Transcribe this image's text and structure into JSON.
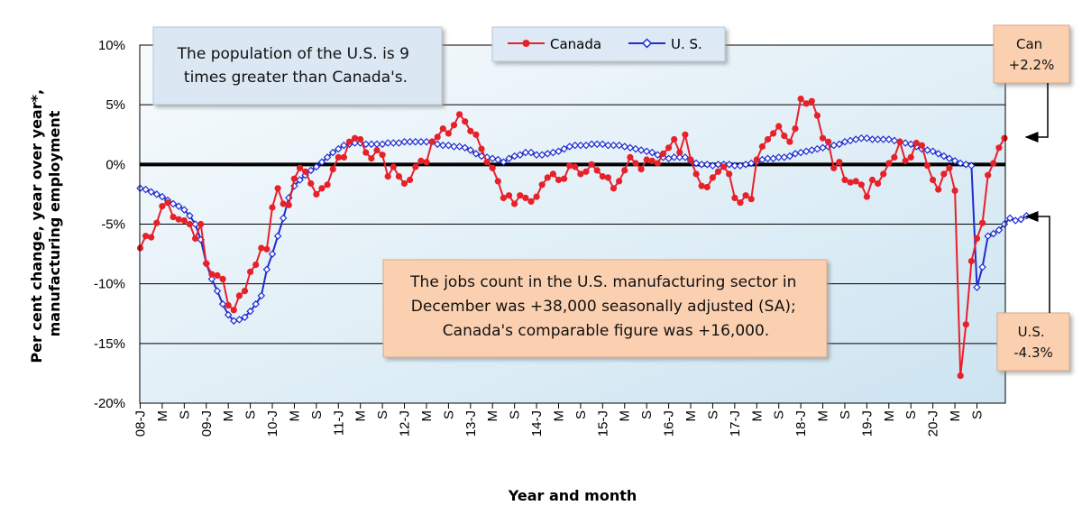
{
  "chart_data": {
    "type": "line",
    "title": "",
    "xlabel": "Year and month",
    "ylabel": "Per cent change, year over year*, manufacturing employment",
    "ylim": [
      -20,
      10
    ],
    "yticks": [
      "10%",
      "5%",
      "0%",
      "-5%",
      "-10%",
      "-15%",
      "-20%"
    ],
    "x_tick_labels": [
      "08-J",
      "M",
      "S",
      "09-J",
      "M",
      "S",
      "10-J",
      "M",
      "S",
      "11-J",
      "M",
      "S",
      "12-J",
      "M",
      "S",
      "13-J",
      "M",
      "S",
      "14-J",
      "M",
      "S",
      "15-J",
      "M",
      "S",
      "16-J",
      "M",
      "S",
      "17-J",
      "M",
      "S",
      "18-J",
      "M",
      "S",
      "19-J",
      "M",
      "S",
      "20-J",
      "M",
      "S"
    ],
    "months_start": "2008-01",
    "months_end": "2020-12",
    "series": [
      {
        "name": "Canada",
        "color": "#e8202a",
        "marker": "filled-circle",
        "values": [
          -7.0,
          -6.0,
          -6.1,
          -4.9,
          -3.5,
          -3.2,
          -4.4,
          -4.6,
          -4.7,
          -5.0,
          -6.2,
          -5.0,
          -8.3,
          -9.2,
          -9.3,
          -9.6,
          -11.8,
          -12.2,
          -11.0,
          -10.6,
          -9.0,
          -8.4,
          -7.0,
          -7.1,
          -3.6,
          -2.0,
          -3.3,
          -3.4,
          -1.2,
          -0.3,
          -0.6,
          -1.6,
          -2.5,
          -2.0,
          -1.7,
          -0.4,
          0.6,
          0.6,
          1.9,
          2.2,
          2.1,
          1.0,
          0.5,
          1.2,
          0.8,
          -1.0,
          -0.2,
          -1.0,
          -1.6,
          -1.3,
          -0.2,
          0.3,
          0.2,
          1.9,
          2.3,
          3.0,
          2.6,
          3.3,
          4.2,
          3.6,
          2.8,
          2.5,
          1.3,
          0.2,
          -0.3,
          -1.4,
          -2.8,
          -2.6,
          -3.3,
          -2.6,
          -2.8,
          -3.1,
          -2.7,
          -1.7,
          -1.1,
          -0.8,
          -1.3,
          -1.2,
          -0.1,
          -0.2,
          -0.8,
          -0.6,
          0.0,
          -0.5,
          -1.0,
          -1.1,
          -2.0,
          -1.4,
          -0.5,
          0.6,
          0.1,
          -0.4,
          0.4,
          0.3,
          0.1,
          0.9,
          1.4,
          2.1,
          1.0,
          2.5,
          0.4,
          -0.8,
          -1.8,
          -1.9,
          -1.1,
          -0.6,
          -0.2,
          -0.8,
          -2.8,
          -3.2,
          -2.6,
          -2.9,
          0.4,
          1.5,
          2.1,
          2.6,
          3.2,
          2.4,
          1.9,
          3.0,
          5.5,
          5.1,
          5.3,
          4.1,
          2.2,
          1.9,
          -0.3,
          0.2,
          -1.3,
          -1.5,
          -1.4,
          -1.7,
          -2.7,
          -1.3,
          -1.6,
          -0.8,
          0.1,
          0.6,
          1.9,
          0.3,
          0.6,
          1.8,
          1.6,
          -0.1,
          -1.3,
          -2.1,
          -0.8,
          -0.3,
          -2.2,
          -17.7,
          -13.4,
          -8.1,
          -6.2,
          -4.9,
          -0.9,
          0.1,
          1.4,
          2.2
        ]
      },
      {
        "name": "U. S.",
        "color": "#1f2dd1",
        "marker": "hollow-diamond",
        "values": [
          -2.0,
          -2.1,
          -2.3,
          -2.5,
          -2.7,
          -3.0,
          -3.3,
          -3.5,
          -3.8,
          -4.3,
          -5.0,
          -6.3,
          -8.3,
          -9.6,
          -10.6,
          -11.7,
          -12.6,
          -13.1,
          -13.0,
          -12.8,
          -12.3,
          -11.7,
          -11.0,
          -8.8,
          -7.5,
          -6.0,
          -4.5,
          -2.8,
          -1.8,
          -1.3,
          -0.9,
          -0.5,
          -0.2,
          0.2,
          0.6,
          1.0,
          1.3,
          1.6,
          1.7,
          1.8,
          1.8,
          1.7,
          1.7,
          1.7,
          1.7,
          1.8,
          1.8,
          1.8,
          1.9,
          1.9,
          1.9,
          1.9,
          1.9,
          1.9,
          1.7,
          1.6,
          1.6,
          1.5,
          1.5,
          1.4,
          1.2,
          0.9,
          0.7,
          0.6,
          0.5,
          0.4,
          0.2,
          0.5,
          0.7,
          0.8,
          1.0,
          1.0,
          0.8,
          0.8,
          0.9,
          1.0,
          1.1,
          1.3,
          1.5,
          1.6,
          1.6,
          1.6,
          1.7,
          1.7,
          1.7,
          1.6,
          1.6,
          1.6,
          1.5,
          1.4,
          1.3,
          1.2,
          1.1,
          1.0,
          0.8,
          0.6,
          0.5,
          0.6,
          0.6,
          0.6,
          0.3,
          0.1,
          0.0,
          0.0,
          -0.1,
          0.0,
          0.0,
          0.0,
          -0.1,
          -0.1,
          0.0,
          0.1,
          0.2,
          0.4,
          0.5,
          0.5,
          0.6,
          0.6,
          0.7,
          0.9,
          1.0,
          1.1,
          1.2,
          1.3,
          1.4,
          1.5,
          1.6,
          1.7,
          1.9,
          2.0,
          2.1,
          2.2,
          2.2,
          2.1,
          2.1,
          2.1,
          2.1,
          2.0,
          1.9,
          1.8,
          1.7,
          1.5,
          1.3,
          1.2,
          1.1,
          0.9,
          0.7,
          0.5,
          0.3,
          0.1,
          0.0,
          -0.1,
          -10.3,
          -8.6,
          -6.0,
          -5.8,
          -5.5,
          -5.0,
          -4.5,
          -4.7,
          -4.6,
          -4.3
        ]
      }
    ],
    "legend": [
      "Canada",
      "U. S."
    ],
    "legend_position": "top-center",
    "zero_line": true
  },
  "annotations": {
    "population_note": [
      "The population of the U.S. is  9",
      "times greater than Canada's."
    ],
    "jobs_note": [
      "The jobs count in the U.S. manufacturing sector in",
      "December was +38,000 seasonally adjusted (SA);",
      "Canada's comparable figure was +16,000."
    ],
    "can_tag": [
      "Can",
      "+2.2%"
    ],
    "us_tag": [
      "U.S.",
      "-4.3%"
    ]
  },
  "colors": {
    "canada": "#e8202a",
    "us": "#1f2dd1",
    "plot_fill_light": "#f4f9fc",
    "plot_fill_dark": "#cfe5f2",
    "note_blue": "#dbe7f3",
    "note_peach": "#fbd0b0"
  }
}
